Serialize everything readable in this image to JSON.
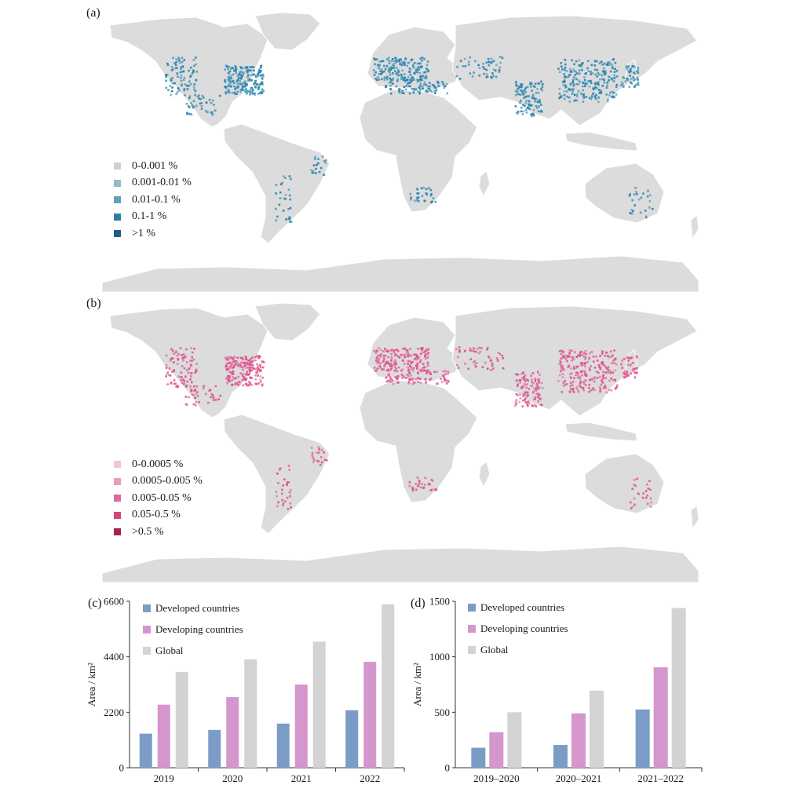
{
  "panels": {
    "a": {
      "label": "(a)",
      "legend": [
        {
          "label": "0-0.001 %",
          "color": "#c9d1d8"
        },
        {
          "label": "0.001-0.01 %",
          "color": "#9ab7c8"
        },
        {
          "label": "0.01-0.1 %",
          "color": "#5fa0bd"
        },
        {
          "label": "0.1-1 %",
          "color": "#2b7ea8"
        },
        {
          "label": ">1 %",
          "color": "#1c5f8a"
        }
      ],
      "dot_color": "#2d86b0"
    },
    "b": {
      "label": "(b)",
      "legend": [
        {
          "label": "0-0.0005 %",
          "color": "#f1c6dc"
        },
        {
          "label": "0.0005-0.005 %",
          "color": "#ea99bf"
        },
        {
          "label": "0.005-0.05 %",
          "color": "#e1659f"
        },
        {
          "label": "0.05-0.5 %",
          "color": "#d8437f"
        },
        {
          "label": ">0.5 %",
          "color": "#a8204f"
        }
      ],
      "dot_color": "#e0538e"
    },
    "c": {
      "label": "(c)"
    },
    "d": {
      "label": "(d)"
    }
  },
  "map_colors": {
    "land": "#dcdcdc",
    "border": "#ffffff"
  },
  "chart_data": [
    {
      "type": "bar",
      "categories": [
        "2019",
        "2020",
        "2021",
        "2022"
      ],
      "series": [
        {
          "name": "Developed countries",
          "values": [
            1350,
            1500,
            1750,
            2280
          ],
          "color": "#7b9cc6"
        },
        {
          "name": "Developing countries",
          "values": [
            2500,
            2800,
            3300,
            4200
          ],
          "color": "#d496cc"
        },
        {
          "name": "Global",
          "values": [
            3800,
            4300,
            5000,
            6480
          ],
          "color": "#d3d3d3"
        }
      ],
      "ylabel": "Area / km²",
      "ylim": [
        0,
        6600
      ],
      "yticks": [
        "0",
        "2200",
        "4400",
        "6600"
      ],
      "legend_position": "top-left"
    },
    {
      "type": "bar",
      "categories": [
        "2019–2020",
        "2020–2021",
        "2021–2022"
      ],
      "series": [
        {
          "name": "Developed countries",
          "values": [
            180,
            205,
            525
          ],
          "color": "#7b9cc6"
        },
        {
          "name": "Developing countries",
          "values": [
            320,
            490,
            905
          ],
          "color": "#d496cc"
        },
        {
          "name": "Global",
          "values": [
            500,
            695,
            1440
          ],
          "color": "#d3d3d3"
        }
      ],
      "ylabel": "Area / km²",
      "ylim": [
        0,
        1500
      ],
      "yticks": [
        "0",
        "500",
        "1000",
        "1500"
      ],
      "legend_position": "top-left"
    }
  ]
}
